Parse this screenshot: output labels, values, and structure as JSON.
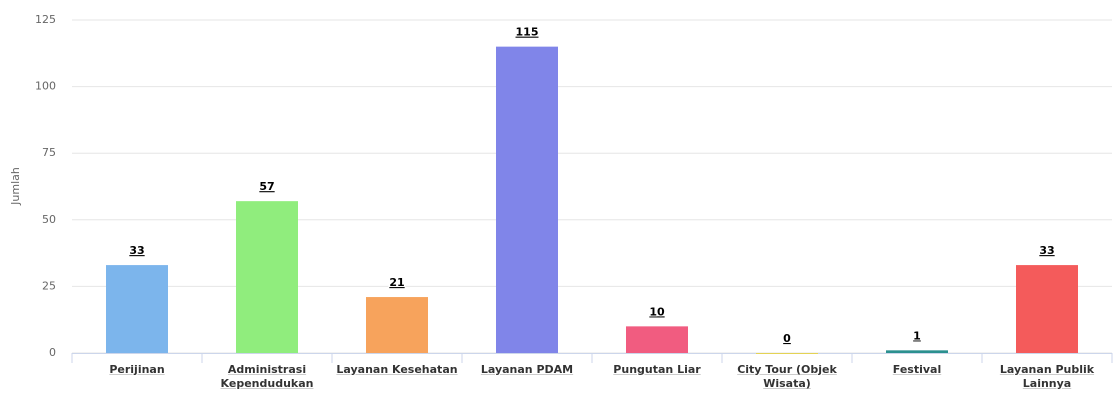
{
  "chart_data": {
    "type": "bar",
    "y_label": "Jumlah",
    "categories": [
      "Perijinan",
      "Administrasi Kependudukan",
      "Layanan Kesehatan",
      "Layanan PDAM",
      "Pungutan Liar",
      "City Tour (Objek Wisata)",
      "Festival",
      "Layanan Publik Lainnya"
    ],
    "values": [
      33,
      57,
      21,
      115,
      10,
      0,
      1,
      33
    ],
    "colors": [
      "#7cb5ec",
      "#90ed7d",
      "#f7a35c",
      "#8085e9",
      "#f15c80",
      "#e4d354",
      "#2b908f",
      "#f45b5b"
    ],
    "ylim": [
      0,
      125
    ],
    "yticks": [
      0,
      25,
      50,
      75,
      100,
      125
    ],
    "grid": true
  }
}
